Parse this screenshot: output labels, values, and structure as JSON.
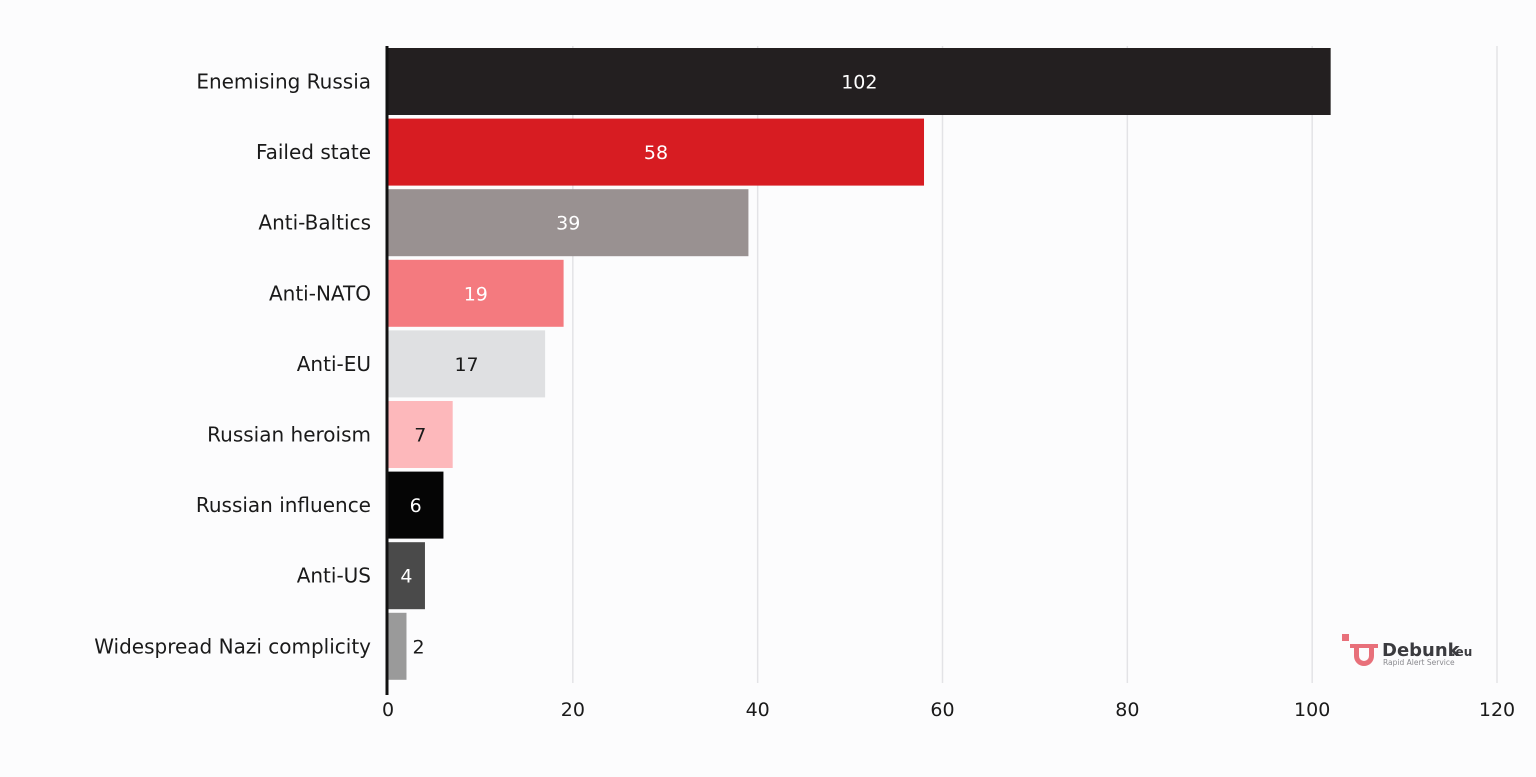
{
  "chart_data": {
    "type": "bar",
    "orientation": "horizontal",
    "categories": [
      "Enemising Russia",
      "Failed state",
      "Anti-Baltics",
      "Anti-NATO",
      "Anti-EU",
      "Russian heroism",
      "Russian influence",
      "Anti-US",
      "Widespread Nazi complicity"
    ],
    "values": [
      102,
      58,
      39,
      19,
      17,
      7,
      6,
      4,
      2
    ],
    "value_labels": [
      "102",
      "58",
      "39",
      "19",
      "17",
      "7",
      "6",
      "4",
      "2"
    ],
    "colors": [
      "#231f20",
      "#d71c22",
      "#999191",
      "#f47a7f",
      "#dfe0e2",
      "#fdb8bb",
      "#050505",
      "#4a4a4a",
      "#9a9a9a"
    ],
    "label_colors": [
      "#ffffff",
      "#ffffff",
      "#ffffff",
      "#ffffff",
      "#1a1a1a",
      "#1a1a1a",
      "#ffffff",
      "#ffffff",
      "#1a1a1a"
    ],
    "xlim": [
      0,
      120
    ],
    "xticks": [
      0,
      20,
      40,
      60,
      80,
      100,
      120
    ],
    "xtick_labels": [
      "0",
      "20",
      "40",
      "60",
      "80",
      "100",
      "120"
    ],
    "grid": true,
    "title": "",
    "xlabel": "",
    "ylabel": ""
  },
  "logo": {
    "name": "Debunk",
    "suffix": ".eu",
    "tagline": "Rapid Alert Service",
    "color": "#e8707a"
  }
}
